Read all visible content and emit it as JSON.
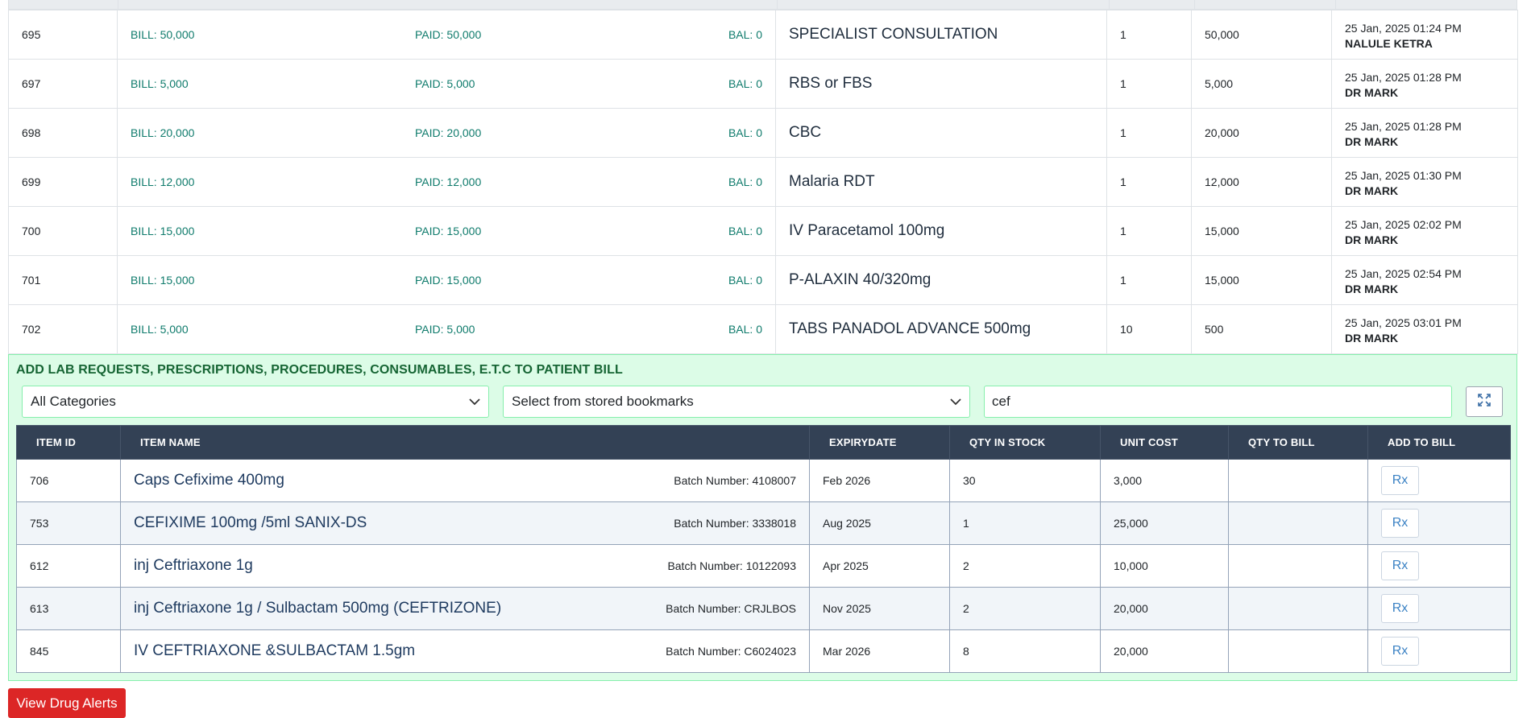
{
  "bills": [
    {
      "id": "695",
      "bill": "BILL: 50,000",
      "paid": "PAID: 50,000",
      "bal": "BAL: 0",
      "desc": "SPECIALIST CONSULTATION",
      "qty": "1",
      "cost": "50,000",
      "date": "25 Jan, 2025 01:24 PM",
      "by": "NALULE KETRA"
    },
    {
      "id": "697",
      "bill": "BILL: 5,000",
      "paid": "PAID: 5,000",
      "bal": "BAL: 0",
      "desc": "RBS or FBS",
      "qty": "1",
      "cost": "5,000",
      "date": "25 Jan, 2025 01:28 PM",
      "by": "DR MARK"
    },
    {
      "id": "698",
      "bill": "BILL: 20,000",
      "paid": "PAID: 20,000",
      "bal": "BAL: 0",
      "desc": "CBC",
      "qty": "1",
      "cost": "20,000",
      "date": "25 Jan, 2025 01:28 PM",
      "by": "DR MARK"
    },
    {
      "id": "699",
      "bill": "BILL: 12,000",
      "paid": "PAID: 12,000",
      "bal": "BAL: 0",
      "desc": "Malaria RDT",
      "qty": "1",
      "cost": "12,000",
      "date": "25 Jan, 2025 01:30 PM",
      "by": "DR MARK"
    },
    {
      "id": "700",
      "bill": "BILL: 15,000",
      "paid": "PAID: 15,000",
      "bal": "BAL: 0",
      "desc": "IV Paracetamol 100mg",
      "qty": "1",
      "cost": "15,000",
      "date": "25 Jan, 2025 02:02 PM",
      "by": "DR MARK"
    },
    {
      "id": "701",
      "bill": "BILL: 15,000",
      "paid": "PAID: 15,000",
      "bal": "BAL: 0",
      "desc": "P-ALAXIN 40/320mg",
      "qty": "1",
      "cost": "15,000",
      "date": "25 Jan, 2025 02:54 PM",
      "by": "DR MARK"
    },
    {
      "id": "702",
      "bill": "BILL: 5,000",
      "paid": "PAID: 5,000",
      "bal": "BAL: 0",
      "desc": "TABS PANADOL ADVANCE 500mg",
      "qty": "10",
      "cost": "500",
      "date": "25 Jan, 2025 03:01 PM",
      "by": "DR MARK"
    }
  ],
  "panel": {
    "title": "ADD LAB REQUESTS, PRESCRIPTIONS, PROCEDURES, CONSUMABLES, E.T.C TO PATIENT BILL",
    "category_selected": "All Categories",
    "bookmark_selected": "Select from stored bookmarks",
    "search_value": "cef"
  },
  "items_table": {
    "headers": [
      "ITEM ID",
      "ITEM NAME",
      "EXPIRYDATE",
      "QTY IN STOCK",
      "UNIT COST",
      "QTY TO BILL",
      "ADD TO BILL"
    ],
    "rows": [
      {
        "id": "706",
        "name": "Caps Cefixime 400mg",
        "batch": "Batch Number: 4108007",
        "expiry": "Feb 2026",
        "stock": "30",
        "cost": "3,000",
        "rx": "Rx"
      },
      {
        "id": "753",
        "name": "CEFIXIME 100mg /5ml SANIX-DS",
        "batch": "Batch Number: 3338018",
        "expiry": "Aug 2025",
        "stock": "1",
        "cost": "25,000",
        "rx": "Rx"
      },
      {
        "id": "612",
        "name": "inj Ceftriaxone 1g",
        "batch": "Batch Number: 10122093",
        "expiry": "Apr 2025",
        "stock": "2",
        "cost": "10,000",
        "rx": "Rx"
      },
      {
        "id": "613",
        "name": "inj Ceftriaxone 1g / Sulbactam 500mg (CEFTRIZONE)",
        "batch": "Batch Number: CRJLBOS",
        "expiry": "Nov 2025",
        "stock": "2",
        "cost": "20,000",
        "rx": "Rx"
      },
      {
        "id": "845",
        "name": "IV CEFTRIAXONE &SULBACTAM 1.5gm",
        "batch": "Batch Number: C6024023",
        "expiry": "Mar 2026",
        "stock": "8",
        "cost": "20,000",
        "rx": "Rx"
      }
    ]
  },
  "footer": {
    "alerts_label": "View Drug Alerts"
  },
  "icons": {
    "select_caret": "chevron-down-icon",
    "expand": "expand-icon"
  },
  "colors": {
    "money_text": "#0f7b6c",
    "panel_bg": "#dcfce7",
    "panel_title": "#166534",
    "table_header": "#334155",
    "alert_button": "#dc2626"
  }
}
